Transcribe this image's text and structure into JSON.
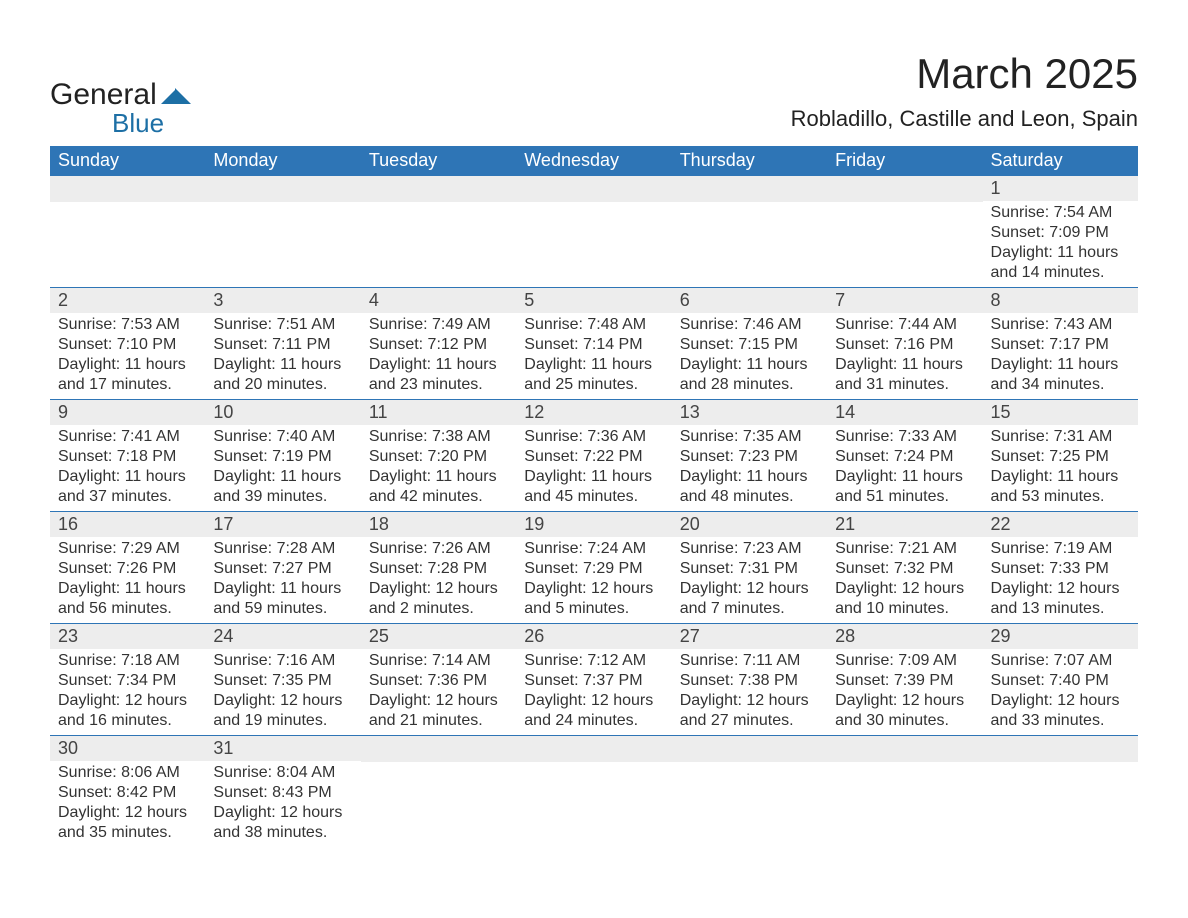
{
  "logo": {
    "word1": "General",
    "word2": "Blue",
    "shape_color": "#1d6fa5"
  },
  "title": "March 2025",
  "subtitle": "Robladillo, Castille and Leon, Spain",
  "colors": {
    "header_bg": "#2e75b6",
    "header_text": "#ffffff",
    "daynum_bg": "#ededed",
    "text": "#333333",
    "row_border": "#2e75b6"
  },
  "weekday_labels": [
    "Sunday",
    "Monday",
    "Tuesday",
    "Wednesday",
    "Thursday",
    "Friday",
    "Saturday"
  ],
  "labels": {
    "sunrise": "Sunrise: ",
    "sunset": "Sunset: ",
    "daylight": "Daylight: "
  },
  "weeks": [
    [
      null,
      null,
      null,
      null,
      null,
      null,
      {
        "n": "1",
        "sunrise": "7:54 AM",
        "sunset": "7:09 PM",
        "daylight": "11 hours and 14 minutes."
      }
    ],
    [
      {
        "n": "2",
        "sunrise": "7:53 AM",
        "sunset": "7:10 PM",
        "daylight": "11 hours and 17 minutes."
      },
      {
        "n": "3",
        "sunrise": "7:51 AM",
        "sunset": "7:11 PM",
        "daylight": "11 hours and 20 minutes."
      },
      {
        "n": "4",
        "sunrise": "7:49 AM",
        "sunset": "7:12 PM",
        "daylight": "11 hours and 23 minutes."
      },
      {
        "n": "5",
        "sunrise": "7:48 AM",
        "sunset": "7:14 PM",
        "daylight": "11 hours and 25 minutes."
      },
      {
        "n": "6",
        "sunrise": "7:46 AM",
        "sunset": "7:15 PM",
        "daylight": "11 hours and 28 minutes."
      },
      {
        "n": "7",
        "sunrise": "7:44 AM",
        "sunset": "7:16 PM",
        "daylight": "11 hours and 31 minutes."
      },
      {
        "n": "8",
        "sunrise": "7:43 AM",
        "sunset": "7:17 PM",
        "daylight": "11 hours and 34 minutes."
      }
    ],
    [
      {
        "n": "9",
        "sunrise": "7:41 AM",
        "sunset": "7:18 PM",
        "daylight": "11 hours and 37 minutes."
      },
      {
        "n": "10",
        "sunrise": "7:40 AM",
        "sunset": "7:19 PM",
        "daylight": "11 hours and 39 minutes."
      },
      {
        "n": "11",
        "sunrise": "7:38 AM",
        "sunset": "7:20 PM",
        "daylight": "11 hours and 42 minutes."
      },
      {
        "n": "12",
        "sunrise": "7:36 AM",
        "sunset": "7:22 PM",
        "daylight": "11 hours and 45 minutes."
      },
      {
        "n": "13",
        "sunrise": "7:35 AM",
        "sunset": "7:23 PM",
        "daylight": "11 hours and 48 minutes."
      },
      {
        "n": "14",
        "sunrise": "7:33 AM",
        "sunset": "7:24 PM",
        "daylight": "11 hours and 51 minutes."
      },
      {
        "n": "15",
        "sunrise": "7:31 AM",
        "sunset": "7:25 PM",
        "daylight": "11 hours and 53 minutes."
      }
    ],
    [
      {
        "n": "16",
        "sunrise": "7:29 AM",
        "sunset": "7:26 PM",
        "daylight": "11 hours and 56 minutes."
      },
      {
        "n": "17",
        "sunrise": "7:28 AM",
        "sunset": "7:27 PM",
        "daylight": "11 hours and 59 minutes."
      },
      {
        "n": "18",
        "sunrise": "7:26 AM",
        "sunset": "7:28 PM",
        "daylight": "12 hours and 2 minutes."
      },
      {
        "n": "19",
        "sunrise": "7:24 AM",
        "sunset": "7:29 PM",
        "daylight": "12 hours and 5 minutes."
      },
      {
        "n": "20",
        "sunrise": "7:23 AM",
        "sunset": "7:31 PM",
        "daylight": "12 hours and 7 minutes."
      },
      {
        "n": "21",
        "sunrise": "7:21 AM",
        "sunset": "7:32 PM",
        "daylight": "12 hours and 10 minutes."
      },
      {
        "n": "22",
        "sunrise": "7:19 AM",
        "sunset": "7:33 PM",
        "daylight": "12 hours and 13 minutes."
      }
    ],
    [
      {
        "n": "23",
        "sunrise": "7:18 AM",
        "sunset": "7:34 PM",
        "daylight": "12 hours and 16 minutes."
      },
      {
        "n": "24",
        "sunrise": "7:16 AM",
        "sunset": "7:35 PM",
        "daylight": "12 hours and 19 minutes."
      },
      {
        "n": "25",
        "sunrise": "7:14 AM",
        "sunset": "7:36 PM",
        "daylight": "12 hours and 21 minutes."
      },
      {
        "n": "26",
        "sunrise": "7:12 AM",
        "sunset": "7:37 PM",
        "daylight": "12 hours and 24 minutes."
      },
      {
        "n": "27",
        "sunrise": "7:11 AM",
        "sunset": "7:38 PM",
        "daylight": "12 hours and 27 minutes."
      },
      {
        "n": "28",
        "sunrise": "7:09 AM",
        "sunset": "7:39 PM",
        "daylight": "12 hours and 30 minutes."
      },
      {
        "n": "29",
        "sunrise": "7:07 AM",
        "sunset": "7:40 PM",
        "daylight": "12 hours and 33 minutes."
      }
    ],
    [
      {
        "n": "30",
        "sunrise": "8:06 AM",
        "sunset": "8:42 PM",
        "daylight": "12 hours and 35 minutes."
      },
      {
        "n": "31",
        "sunrise": "8:04 AM",
        "sunset": "8:43 PM",
        "daylight": "12 hours and 38 minutes."
      },
      null,
      null,
      null,
      null,
      null
    ]
  ]
}
